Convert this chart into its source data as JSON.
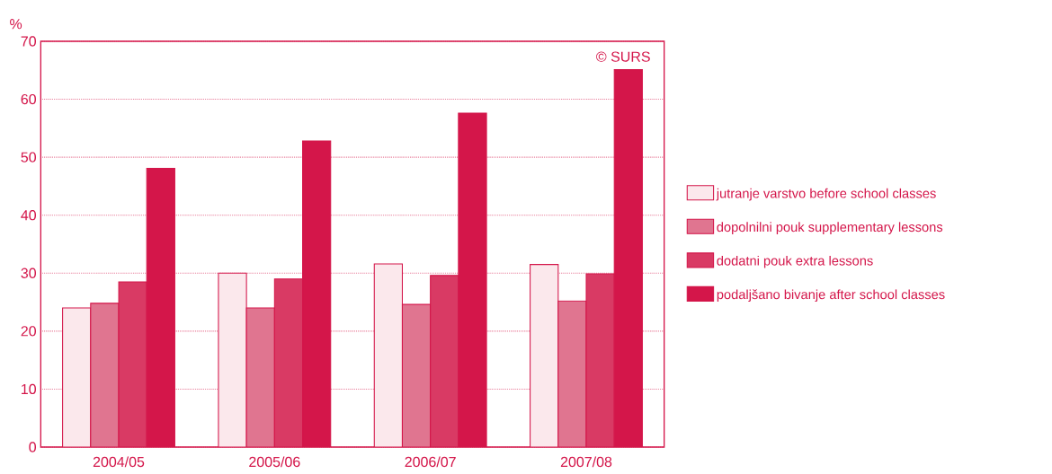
{
  "chart_data": {
    "type": "bar",
    "ylabel": "%",
    "categories": [
      "2004/05",
      "2005/06",
      "2006/07",
      "2007/08"
    ],
    "series": [
      {
        "name": "jutranje varstvo before school classes",
        "color": "#fbe8ec",
        "values": [
          24.0,
          30.0,
          31.6,
          31.5
        ]
      },
      {
        "name": "dopolnilni pouk supplementary lessons",
        "color": "#e07590",
        "values": [
          24.8,
          24.0,
          24.6,
          25.2
        ]
      },
      {
        "name": "dodatni pouk extra lessons",
        "color": "#d93a64",
        "values": [
          28.5,
          29.0,
          29.6,
          29.9
        ]
      },
      {
        "name": "podaljšano bivanje after school classes",
        "color": "#d4164a",
        "values": [
          48.1,
          52.8,
          57.6,
          65.1
        ]
      }
    ],
    "ylim": [
      0,
      70
    ],
    "yticks": [
      0,
      10,
      20,
      30,
      40,
      50,
      60,
      70
    ],
    "grid": "y",
    "legend": "right",
    "annotations": [
      "© SURS"
    ]
  }
}
